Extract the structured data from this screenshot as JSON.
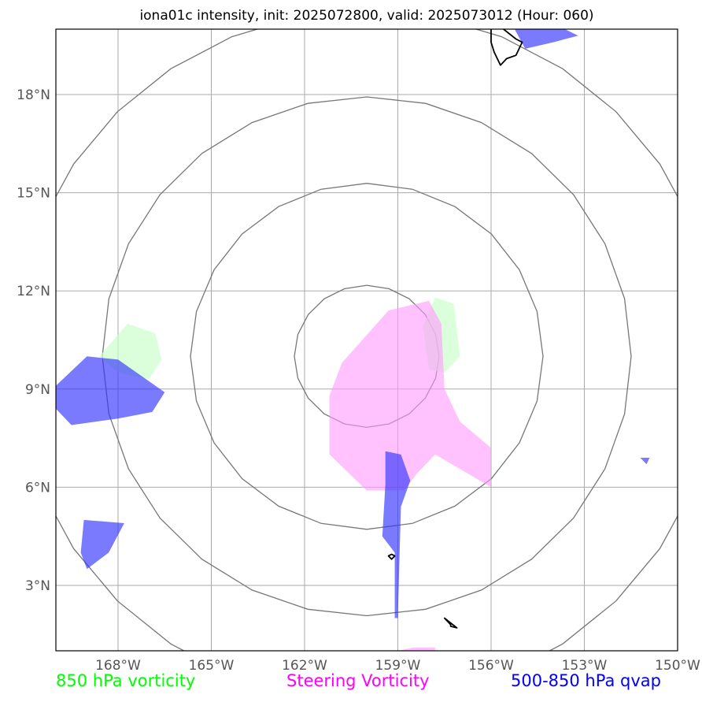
{
  "title": "iona01c intensity, init: 2025072800, valid: 2025073012 (Hour: 060)",
  "map": {
    "lon_range": [
      -170,
      -150
    ],
    "lat_range": [
      1,
      20
    ],
    "lon_ticks": [
      {
        "value": -168,
        "label": "168°W"
      },
      {
        "value": -165,
        "label": "165°W"
      },
      {
        "value": -162,
        "label": "162°W"
      },
      {
        "value": -159,
        "label": "159°W"
      },
      {
        "value": -156,
        "label": "156°W"
      },
      {
        "value": -153,
        "label": "153°W"
      },
      {
        "value": -150,
        "label": "150°W"
      }
    ],
    "lat_ticks": [
      {
        "value": 3,
        "label": "3°N"
      },
      {
        "value": 6,
        "label": "6°N"
      },
      {
        "value": 9,
        "label": "9°N"
      },
      {
        "value": 12,
        "label": "12°N"
      },
      {
        "value": 15,
        "label": "15°N"
      },
      {
        "value": 18,
        "label": "18°N"
      }
    ],
    "range_ring_center": {
      "lon": -160.0,
      "lat": 10.0
    },
    "range_ring_count": 4,
    "gridlines": true,
    "colors": {
      "vorticity_850": "#ccffcc",
      "steering_vorticity": "#ff99ff",
      "qvap": "#3333ff",
      "range_ring": "#777777",
      "grid": "#aaaaaa",
      "coast": "#000000"
    }
  },
  "fields": {
    "vorticity_850": [
      [
        [
          -168.6,
          10.0
        ],
        [
          -167.7,
          11.0
        ],
        [
          -166.8,
          10.7
        ],
        [
          -166.6,
          9.9
        ],
        [
          -167.0,
          9.3
        ],
        [
          -168.0,
          9.5
        ]
      ],
      [
        [
          -157.8,
          11.8
        ],
        [
          -157.2,
          11.6
        ],
        [
          -157.0,
          10.0
        ],
        [
          -157.5,
          9.5
        ],
        [
          -158.0,
          9.6
        ],
        [
          -158.2,
          10.9
        ]
      ]
    ],
    "steering_vorticity": [
      [
        [
          -159.3,
          11.4
        ],
        [
          -158.0,
          11.7
        ],
        [
          -157.6,
          11.0
        ],
        [
          -157.5,
          9.0
        ],
        [
          -157.0,
          8.0
        ],
        [
          -156.0,
          7.2
        ],
        [
          -156.0,
          6.0
        ],
        [
          -157.8,
          7.0
        ],
        [
          -158.4,
          6.4
        ],
        [
          -158.8,
          5.9
        ],
        [
          -160.0,
          5.9
        ],
        [
          -161.2,
          7.0
        ],
        [
          -161.2,
          8.8
        ],
        [
          -160.8,
          9.8
        ]
      ],
      [
        [
          -159.0,
          1.0
        ],
        [
          -158.5,
          1.1
        ],
        [
          -157.8,
          1.1
        ],
        [
          -157.8,
          1.0
        ]
      ]
    ],
    "qvap": [
      [
        [
          -169.0,
          10.0
        ],
        [
          -168.0,
          9.9
        ],
        [
          -166.5,
          8.9
        ],
        [
          -166.9,
          8.3
        ],
        [
          -168.0,
          8.1
        ],
        [
          -169.5,
          7.9
        ],
        [
          -170.0,
          8.4
        ],
        [
          -170.0,
          9.1
        ]
      ],
      [
        [
          -169.1,
          5.0
        ],
        [
          -167.8,
          4.9
        ],
        [
          -168.3,
          4.0
        ],
        [
          -169.0,
          3.5
        ],
        [
          -169.2,
          4.0
        ]
      ],
      [
        [
          -159.4,
          7.1
        ],
        [
          -158.9,
          7.0
        ],
        [
          -158.6,
          6.2
        ],
        [
          -158.9,
          5.4
        ],
        [
          -159.0,
          2.0
        ],
        [
          -159.1,
          2.0
        ],
        [
          -159.1,
          4.0
        ],
        [
          -159.5,
          4.5
        ],
        [
          -159.4,
          6.1
        ]
      ],
      [
        [
          -155.5,
          20.5
        ],
        [
          -154.7,
          20.5
        ],
        [
          -153.2,
          19.8
        ],
        [
          -154.0,
          19.6
        ],
        [
          -154.9,
          19.4
        ],
        [
          -155.3,
          20.1
        ]
      ],
      [
        [
          -151.2,
          6.9
        ],
        [
          -150.9,
          6.9
        ],
        [
          -151.0,
          6.7
        ]
      ]
    ],
    "coastlines": [
      [
        [
          -156.0,
          20.25
        ],
        [
          -155.6,
          20.0
        ],
        [
          -155.2,
          19.7
        ],
        [
          -155.0,
          19.6
        ],
        [
          -155.2,
          19.2
        ],
        [
          -155.5,
          19.1
        ],
        [
          -155.7,
          18.9
        ],
        [
          -155.9,
          19.3
        ],
        [
          -156.0,
          19.6
        ],
        [
          -156.0,
          19.9
        ]
      ],
      [
        [
          -157.2,
          20.5
        ],
        [
          -156.9,
          20.3
        ],
        [
          -156.5,
          20.3
        ],
        [
          -156.6,
          20.6
        ],
        [
          -156.9,
          20.7
        ]
      ],
      [
        [
          -157.5,
          20.5
        ],
        [
          -157.3,
          20.4
        ],
        [
          -157.2,
          20.5
        ],
        [
          -157.4,
          20.6
        ]
      ],
      [
        [
          -159.3,
          3.9
        ],
        [
          -159.2,
          3.8
        ],
        [
          -159.1,
          3.9
        ],
        [
          -159.2,
          3.95
        ]
      ],
      [
        [
          -157.5,
          2.0
        ],
        [
          -157.3,
          1.85
        ],
        [
          -157.1,
          1.7
        ],
        [
          -157.3,
          1.75
        ],
        [
          -157.3,
          1.8
        ],
        [
          -157.4,
          1.9
        ]
      ]
    ]
  },
  "legend": {
    "vorticity_850": {
      "label": "850 hPa vorticity",
      "color": "#00ff00"
    },
    "steering_vorticity": {
      "label": "Steering Vorticity",
      "color": "#ff00ff"
    },
    "qvap": {
      "label": "500-850 hPa qvap",
      "color": "#0000ff"
    }
  }
}
